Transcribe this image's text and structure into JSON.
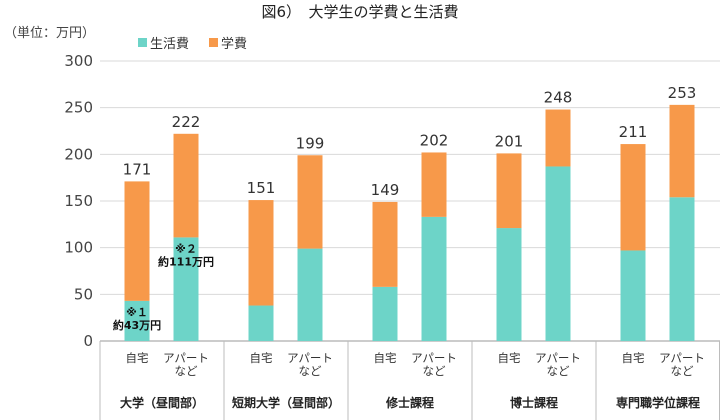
{
  "chart_data": {
    "type": "bar",
    "stacked": true,
    "title": "図6）　大学生の学費と生活費",
    "unit_label": "（単位：万円）",
    "ylim": [
      0,
      300
    ],
    "yticks": [
      0,
      50,
      100,
      150,
      200,
      250,
      300
    ],
    "grid": true,
    "legend": {
      "placement": "top-left",
      "entries": [
        "生活費",
        "学費"
      ]
    },
    "colors": {
      "生活費": "#6dd4c8",
      "学費": "#f7994a"
    },
    "groups": [
      {
        "label": "大学（昼間部）",
        "categories": [
          "自宅",
          "アパートなど"
        ]
      },
      {
        "label": "短期大学（昼間部）",
        "categories": [
          "自宅",
          "アパートなど"
        ]
      },
      {
        "label": "修士課程",
        "categories": [
          "自宅",
          "アパートなど"
        ]
      },
      {
        "label": "博士課程",
        "categories": [
          "自宅",
          "アパートなど"
        ]
      },
      {
        "label": "専門職学位課程",
        "categories": [
          "自宅",
          "アパートなど"
        ]
      }
    ],
    "series": [
      {
        "name": "生活費",
        "values": [
          43,
          111,
          38,
          99,
          58,
          133,
          121,
          187,
          97,
          154
        ]
      },
      {
        "name": "学費",
        "values": [
          128,
          111,
          113,
          100,
          91,
          69,
          80,
          61,
          114,
          99
        ]
      }
    ],
    "totals": [
      171,
      222,
      151,
      199,
      149,
      202,
      201,
      248,
      211,
      253
    ],
    "annotations": [
      {
        "bar_index": 0,
        "lines": [
          "※１",
          "約43万円"
        ]
      },
      {
        "bar_index": 1,
        "lines": [
          "※２",
          "約111万円"
        ]
      }
    ]
  }
}
